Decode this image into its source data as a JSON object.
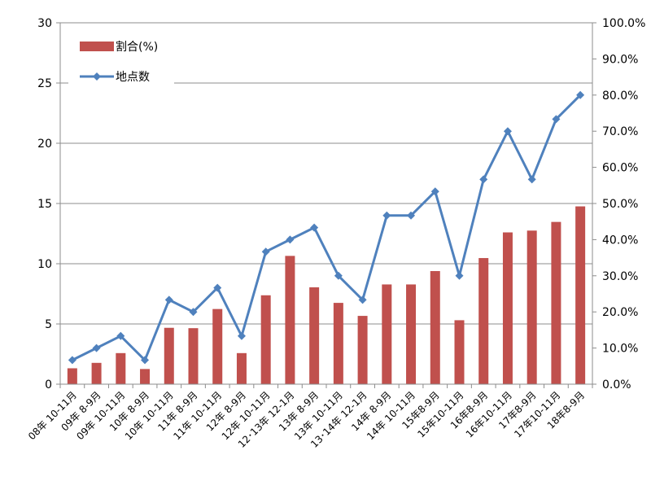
{
  "chart_data": {
    "type": "bar+line",
    "categories": [
      "08年 10-11月",
      "09年 8-9月",
      "09年 10-11月",
      "10年 8-9月",
      "10年 10-11月",
      "11年 8-9月",
      "11年 10-11月",
      "12年 8-9月",
      "12年 10-11月",
      "12･13年 12-1月",
      "13年 8-9月",
      "13年 10-11月",
      "13･14年 12-1月",
      "14年 8-9月",
      "14年 10-11月",
      "15年8-9月",
      "15年10-11月",
      "16年8-9月",
      "16年10-11月",
      "17年8-9月",
      "17年10-11月",
      "18年8-9月"
    ],
    "series": [
      {
        "name": "割合(%)",
        "type": "bar",
        "axis": "right",
        "color": "#C0504D",
        "values": [
          4.4,
          5.9,
          8.6,
          4.2,
          15.6,
          15.5,
          20.8,
          8.6,
          24.6,
          35.5,
          26.8,
          22.5,
          18.9,
          27.6,
          27.6,
          31.3,
          17.7,
          34.9,
          42.0,
          42.5,
          44.9,
          49.2
        ]
      },
      {
        "name": "地点数",
        "type": "line",
        "axis": "left",
        "color": "#4F81BD",
        "values": [
          2,
          3,
          4,
          2,
          7,
          6,
          8,
          4,
          11,
          12,
          13,
          9,
          7,
          14,
          14,
          16,
          9,
          17,
          21,
          17,
          22,
          24
        ]
      }
    ],
    "ylim_left": [
      0,
      30
    ],
    "yticks_left": [
      "0",
      "5",
      "10",
      "15",
      "20",
      "25",
      "30"
    ],
    "ylim_right": [
      0,
      100
    ],
    "yticks_right": [
      "0.0%",
      "10.0%",
      "20.0%",
      "30.0%",
      "40.0%",
      "50.0%",
      "60.0%",
      "70.0%",
      "80.0%",
      "90.0%",
      "100.0%"
    ],
    "grid": "horizontal",
    "legend_position": "top-left",
    "title": "",
    "xlabel": "",
    "ylabel": ""
  }
}
